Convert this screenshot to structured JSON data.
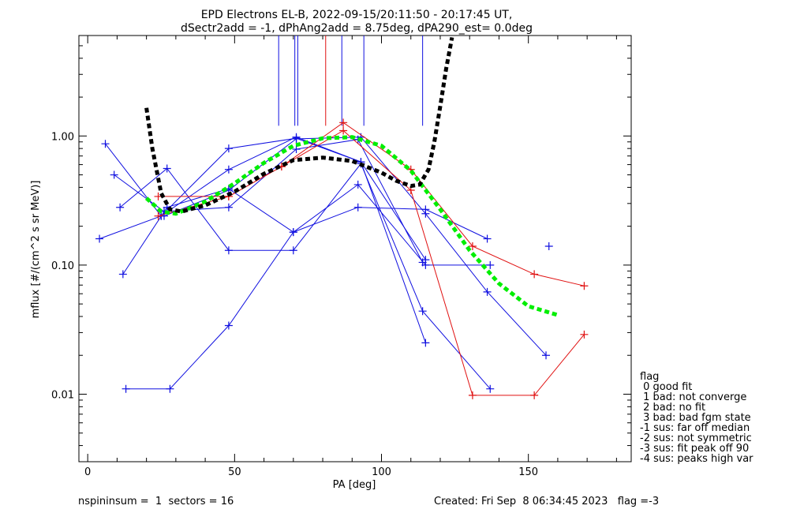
{
  "chart_data": {
    "type": "line",
    "title": "EPD Electrons EL-B, 2022-09-15/20:11:50 - 20:17:45 UT,",
    "subtitle": "dSectr2add = -1, dPhAng2add = 8.75deg, dPA290_est=   0.0deg",
    "xlabel": "PA [deg]",
    "ylabel": "mflux [#/(cm^2 s sr MeV)]",
    "xlim": [
      -3,
      185
    ],
    "ylim": [
      0.003,
      6.0
    ],
    "yscale": "log",
    "xticks": [
      0,
      50,
      100,
      150
    ],
    "xtick_labels": [
      "0",
      "50",
      "100",
      "150"
    ],
    "yticks": [
      0.01,
      0.1,
      1.0
    ],
    "ytick_labels": [
      "0.01",
      "0.10",
      "1.00"
    ],
    "colors": {
      "blue": "#1010e0",
      "red": "#e01010",
      "green": "#00ee00",
      "black": "#000000"
    },
    "vlines": [
      {
        "x": 65,
        "color": "blue"
      },
      {
        "x": 70.5,
        "color": "blue"
      },
      {
        "x": 71.5,
        "color": "blue"
      },
      {
        "x": 81,
        "color": "red"
      },
      {
        "x": 86.5,
        "color": "blue"
      },
      {
        "x": 94,
        "color": "blue"
      },
      {
        "x": 114,
        "color": "blue"
      }
    ],
    "series": [
      {
        "color": "blue",
        "x": [
          4,
          25,
          48,
          71,
          93,
          115
        ],
        "y": [
          0.16,
          0.24,
          0.55,
          0.98,
          0.63,
          0.025
        ]
      },
      {
        "color": "blue",
        "x": [
          6,
          25,
          48,
          71,
          93,
          115
        ],
        "y": [
          0.87,
          0.24,
          0.8,
          0.96,
          0.63,
          0.11
        ]
      },
      {
        "color": "blue",
        "x": [
          9,
          26,
          48,
          71,
          92,
          114
        ],
        "y": [
          0.5,
          0.26,
          0.28,
          0.79,
          0.94,
          0.105
        ]
      },
      {
        "color": "blue",
        "x": [
          11,
          27,
          48,
          70,
          93,
          114,
          137
        ],
        "y": [
          0.28,
          0.56,
          0.13,
          0.13,
          0.61,
          0.044,
          0.011
        ]
      },
      {
        "color": "blue",
        "x": [
          12,
          27,
          48,
          70,
          92,
          115,
          136
        ],
        "y": [
          0.085,
          0.28,
          0.39,
          0.18,
          0.28,
          0.27,
          0.16
        ]
      },
      {
        "color": "blue",
        "x": [
          13,
          28,
          48,
          70,
          92,
          115,
          137
        ],
        "y": [
          0.011,
          0.011,
          0.034,
          0.18,
          0.42,
          0.1,
          0.1
        ]
      },
      {
        "color": "blue",
        "x": [
          26,
          48,
          71,
          93,
          115,
          136,
          156
        ],
        "y": [
          0.24,
          0.38,
          0.95,
          0.98,
          0.25,
          0.062,
          0.02
        ]
      },
      {
        "color": "blue",
        "x": [
          157
        ],
        "y": [
          0.14
        ]
      },
      {
        "color": "red",
        "x": [
          24,
          48,
          66,
          87,
          110,
          131,
          152,
          169
        ],
        "y": [
          0.34,
          0.34,
          0.58,
          1.27,
          0.55,
          0.14,
          0.085,
          0.069
        ]
      },
      {
        "color": "red",
        "x": [
          24,
          48,
          66,
          87,
          110,
          131,
          152,
          169
        ],
        "y": [
          0.24,
          0.34,
          0.58,
          1.1,
          0.38,
          0.0098,
          0.0098,
          0.029
        ]
      }
    ],
    "fits": [
      {
        "color": "green",
        "style": "dashed",
        "x": [
          20,
          25,
          30,
          40,
          50,
          60,
          70,
          80,
          90,
          100,
          110,
          120,
          130,
          140,
          150,
          160
        ],
        "y": [
          0.33,
          0.26,
          0.25,
          0.31,
          0.43,
          0.62,
          0.84,
          0.96,
          0.98,
          0.84,
          0.54,
          0.27,
          0.13,
          0.072,
          0.048,
          0.041
        ]
      },
      {
        "color": "black",
        "style": "dashed",
        "x": [
          20,
          22,
          25,
          28,
          32,
          40,
          50,
          60,
          70,
          80,
          90,
          100,
          105,
          110,
          113,
          116,
          118,
          120,
          122,
          124
        ],
        "y": [
          1.65,
          0.8,
          0.36,
          0.27,
          0.26,
          0.29,
          0.37,
          0.51,
          0.65,
          0.68,
          0.64,
          0.52,
          0.45,
          0.41,
          0.42,
          0.55,
          0.9,
          1.7,
          3.3,
          5.8
        ]
      }
    ],
    "legend": {
      "title": "flag",
      "items": [
        " 0 good fit",
        " 1 bad: not converge",
        " 2 bad: no fit",
        " 3 bad: bad fgm state",
        "-1 sus: far off median",
        "-2 sus: not symmetric",
        "-3 sus: fit peak off 90",
        "-4 sus: peaks high var"
      ]
    }
  },
  "footer": {
    "left": "nspininsum =  1  sectors = 16",
    "right": "Created: Fri Sep  8 06:34:45 2023   flag =-3"
  }
}
